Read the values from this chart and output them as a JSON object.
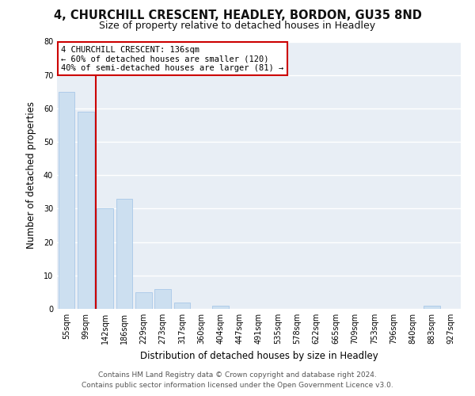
{
  "title": "4, CHURCHILL CRESCENT, HEADLEY, BORDON, GU35 8ND",
  "subtitle": "Size of property relative to detached houses in Headley",
  "xlabel": "Distribution of detached houses by size in Headley",
  "ylabel": "Number of detached properties",
  "footer_line1": "Contains HM Land Registry data © Crown copyright and database right 2024.",
  "footer_line2": "Contains public sector information licensed under the Open Government Licence v3.0.",
  "bar_labels": [
    "55sqm",
    "99sqm",
    "142sqm",
    "186sqm",
    "229sqm",
    "273sqm",
    "317sqm",
    "360sqm",
    "404sqm",
    "447sqm",
    "491sqm",
    "535sqm",
    "578sqm",
    "622sqm",
    "665sqm",
    "709sqm",
    "753sqm",
    "796sqm",
    "840sqm",
    "883sqm",
    "927sqm"
  ],
  "bar_values": [
    65,
    59,
    30,
    33,
    5,
    6,
    2,
    0,
    1,
    0,
    0,
    0,
    0,
    0,
    0,
    0,
    0,
    0,
    0,
    1,
    0
  ],
  "property_line_index": 2,
  "property_line_label": "4 CHURCHILL CRESCENT: 136sqm",
  "annotation_line2": "← 60% of detached houses are smaller (120)",
  "annotation_line3": "40% of semi-detached houses are larger (81) →",
  "bar_color": "#ccdff0",
  "bar_edge_color": "#a8c8e8",
  "line_color": "#cc0000",
  "annotation_box_edge_color": "#cc0000",
  "ylim": [
    0,
    80
  ],
  "yticks": [
    0,
    10,
    20,
    30,
    40,
    50,
    60,
    70,
    80
  ],
  "background_color": "#ffffff",
  "plot_bg_color": "#e8eef5",
  "grid_color": "#ffffff",
  "title_fontsize": 10.5,
  "subtitle_fontsize": 9,
  "axis_label_fontsize": 8.5,
  "tick_fontsize": 7,
  "annotation_fontsize": 7.5,
  "footer_fontsize": 6.5
}
